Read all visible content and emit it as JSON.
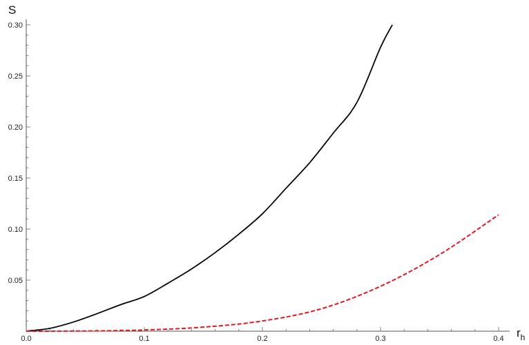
{
  "chart_data": {
    "type": "line",
    "ylabel": "S",
    "xlabel": "r",
    "xlabel_sub": "h",
    "xlim": [
      0,
      0.4
    ],
    "ylim": [
      0,
      0.3
    ],
    "x_ticks": [
      "0.0",
      "0.1",
      "0.2",
      "0.3",
      "0.4"
    ],
    "y_ticks": [
      "0.05",
      "0.10",
      "0.15",
      "0.20",
      "0.25",
      "0.30"
    ],
    "grid": false,
    "series": [
      {
        "style": "solid",
        "color": "#000000",
        "x": [
          0,
          0.02,
          0.04,
          0.06,
          0.08,
          0.1,
          0.12,
          0.14,
          0.16,
          0.18,
          0.2,
          0.22,
          0.24,
          0.26,
          0.28,
          0.3,
          0.31
        ],
        "y": [
          0,
          0.0028,
          0.009,
          0.0172,
          0.026,
          0.034,
          0.047,
          0.061,
          0.077,
          0.095,
          0.115,
          0.14,
          0.165,
          0.194,
          0.224,
          0.278,
          0.3
        ]
      },
      {
        "style": "dashed",
        "color": "#e8141a",
        "x": [
          0,
          0.05,
          0.1,
          0.15,
          0.2,
          0.25,
          0.3,
          0.35,
          0.4
        ],
        "y": [
          0,
          0.0002,
          0.0012,
          0.004,
          0.01,
          0.022,
          0.044,
          0.075,
          0.114
        ]
      }
    ]
  }
}
